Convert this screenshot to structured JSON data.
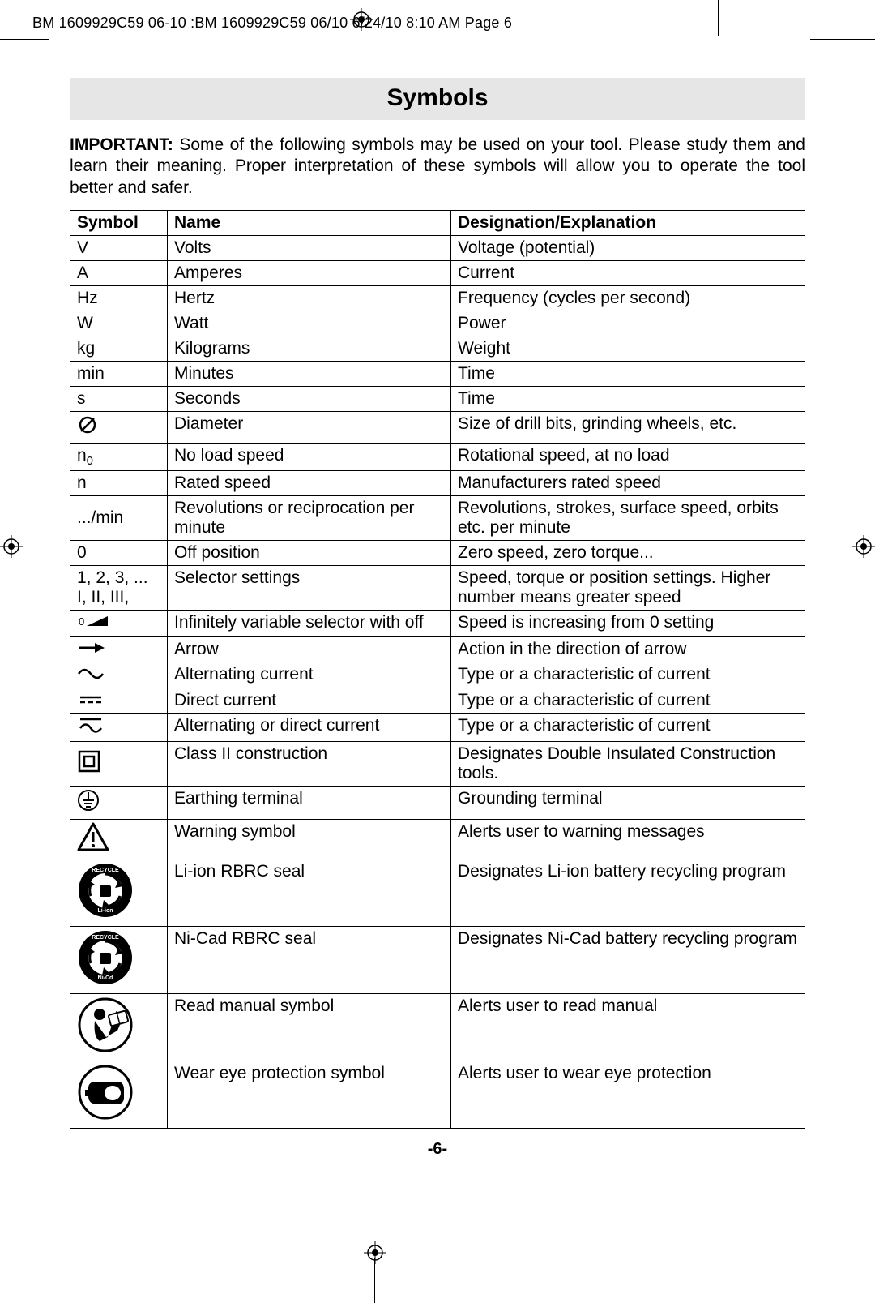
{
  "header_text": "BM 1609929C59 06-10 :BM 1609929C59 06/10  6/24/10  8:10 AM  Page 6",
  "title": "Symbols",
  "intro_bold": "IMPORTANT:",
  "intro_text": " Some of the following symbols may be used on your tool.  Please study them and learn their meaning.  Proper interpretation of these symbols will allow you to operate the tool better and safer.",
  "columns": [
    "Symbol",
    "Name",
    "Designation/Explanation"
  ],
  "rows": [
    {
      "sym_text": "V",
      "name": "Volts",
      "desc": "Voltage (potential)"
    },
    {
      "sym_text": "A",
      "name": "Amperes",
      "desc": "Current"
    },
    {
      "sym_text": "Hz",
      "name": "Hertz",
      "desc": "Frequency (cycles per second)"
    },
    {
      "sym_text": "W",
      "name": "Watt",
      "desc": "Power"
    },
    {
      "sym_text": "kg",
      "name": "Kilograms",
      "desc": "Weight"
    },
    {
      "sym_text": "min",
      "name": "Minutes",
      "desc": "Time"
    },
    {
      "sym_text": "s",
      "name": "Seconds",
      "desc": "Time"
    },
    {
      "sym_icon": "diameter",
      "name": "Diameter",
      "desc": "Size of drill bits, grinding wheels,  etc."
    },
    {
      "sym_html": "n<span class='sub'>0</span>",
      "name": "No load speed",
      "desc": "Rotational speed, at no load"
    },
    {
      "sym_text": "n",
      "name": "Rated speed",
      "desc": "Manufacturers rated speed"
    },
    {
      "sym_text": ".../min",
      "name": "Revolutions or reciprocation per minute",
      "desc": "Revolutions, strokes, surface speed, orbits etc. per minute"
    },
    {
      "sym_text": "0",
      "name": "Off position",
      "desc": "Zero speed, zero torque..."
    },
    {
      "sym_html": "1, 2, 3, ...<br>I, II, III,",
      "name": "Selector settings",
      "desc": "Speed, torque or position settings. Higher number means greater speed"
    },
    {
      "sym_icon": "ramp",
      "name": "Infinitely variable selector with off",
      "desc": "Speed is increasing from 0 setting"
    },
    {
      "sym_icon": "arrow",
      "name": "Arrow",
      "desc": "Action in the direction of arrow"
    },
    {
      "sym_icon": "ac",
      "name": "Alternating current",
      "desc": "Type or a characteristic of current"
    },
    {
      "sym_icon": "dc",
      "name": "Direct current",
      "desc": "Type or a characteristic of current"
    },
    {
      "sym_icon": "acdc",
      "name": "Alternating or direct current",
      "desc": "Type or a characteristic of current"
    },
    {
      "sym_icon": "class2",
      "name": "Class II construction",
      "desc": "Designates Double Insulated Construction tools."
    },
    {
      "sym_icon": "earth",
      "name": "Earthing terminal",
      "desc": "Grounding terminal"
    },
    {
      "sym_icon": "warning",
      "name": "Warning symbol",
      "desc": "Alerts user to warning messages"
    },
    {
      "sym_icon": "rbrc-liion",
      "name": "Li-ion RBRC seal",
      "desc": "Designates Li-ion battery recycling program"
    },
    {
      "sym_icon": "rbrc-nicd",
      "name": "Ni-Cad RBRC seal",
      "desc": "Designates Ni-Cad battery recycling program"
    },
    {
      "sym_icon": "read-manual",
      "name": "Read manual symbol",
      "desc": "Alerts user to read manual"
    },
    {
      "sym_icon": "eye-protection",
      "name": "Wear eye protection symbol",
      "desc": "Alerts user to wear eye protection"
    }
  ],
  "page_number": "-6-",
  "icon_size_small": 30,
  "icon_size_large": 70,
  "colors": {
    "title_bg": "#e6e6e6",
    "text": "#000000",
    "bg": "#ffffff"
  }
}
